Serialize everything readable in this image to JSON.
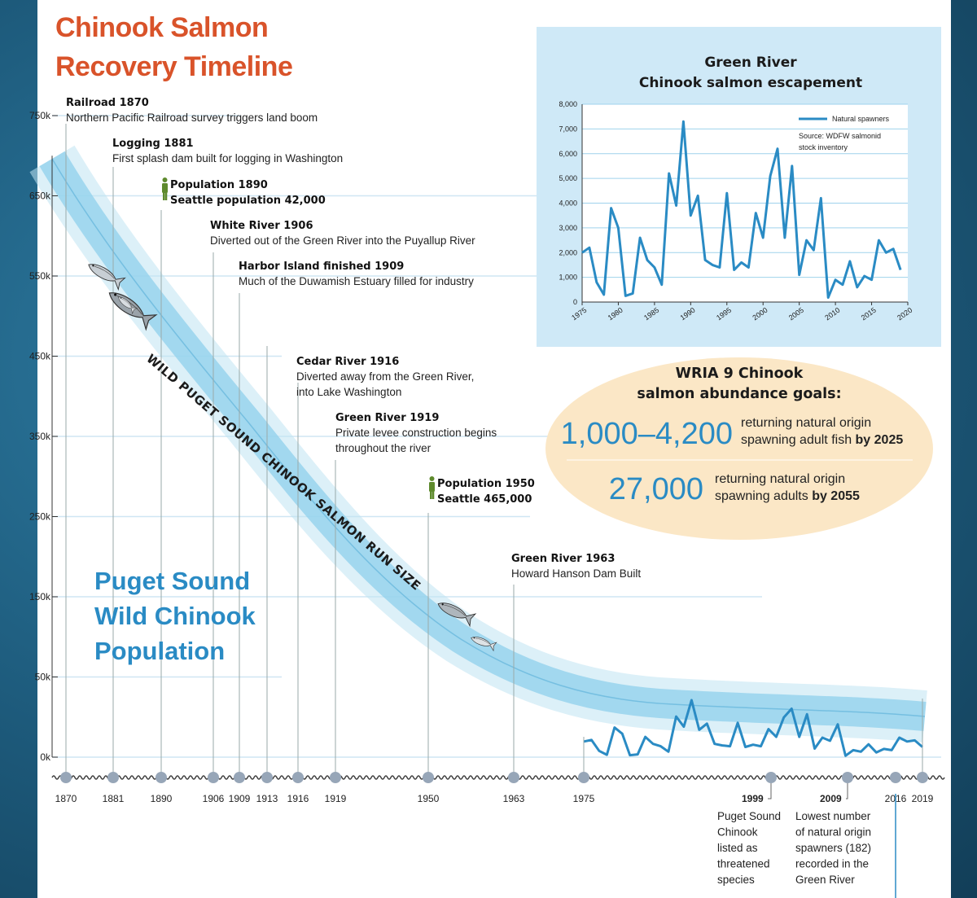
{
  "title_line1": "Chinook Salmon",
  "title_line2": "Recovery Timeline",
  "colors": {
    "title": "#d9532a",
    "accent_blue": "#2a8bc4",
    "band": "#7fc7e6",
    "inset_bg": "#cfe9f7",
    "goals_bg": "#fbe7c6",
    "population_icon": "#5e8a2d"
  },
  "main_chart": {
    "y_ticks": [
      "750k",
      "650k",
      "550k",
      "450k",
      "350k",
      "250k",
      "150k",
      "50k",
      "0k"
    ],
    "run_size_label": "WILD PUGET SOUND CHINOOK SALMON RUN SIZE",
    "population_label": [
      "Puget Sound",
      "Wild Chinook",
      "Population"
    ],
    "timeline_years": [
      "1870",
      "1881",
      "1890",
      "1906",
      "1909",
      "1913",
      "1916",
      "1919",
      "1950",
      "1963",
      "1975",
      "1999",
      "2009",
      "2016",
      "2019"
    ],
    "events": [
      {
        "title": "Railroad 1870",
        "desc": [
          "Northern Pacific Railroad survey triggers land boom"
        ],
        "icon": "none"
      },
      {
        "title": "Logging 1881",
        "desc": [
          "First splash dam built for logging in Washington"
        ],
        "icon": "none"
      },
      {
        "title": "Population 1890",
        "desc": [
          "Seattle population 42,000"
        ],
        "icon": "person-icon"
      },
      {
        "title": "White River 1906",
        "desc": [
          "Diverted out of the Green River into the Puyallup River"
        ],
        "icon": "none"
      },
      {
        "title": "Harbor Island finished 1909",
        "desc": [
          "Much of the Duwamish Estuary filled for industry"
        ],
        "icon": "none"
      },
      {
        "title": "Cedar River 1916",
        "desc": [
          "Diverted away from the Green River,",
          "into Lake Washington"
        ],
        "icon": "none"
      },
      {
        "title": "Green River 1919",
        "desc": [
          "Private levee construction begins",
          "throughout the river"
        ],
        "icon": "none"
      },
      {
        "title": "Population 1950",
        "desc": [
          "Seattle 465,000"
        ],
        "icon": "person-icon"
      },
      {
        "title": "Green River 1963",
        "desc": [
          "Howard Hanson Dam Built"
        ],
        "icon": "none"
      }
    ],
    "notes": [
      {
        "year": "1999",
        "lines": [
          "Puget Sound",
          "Chinook",
          "listed as",
          "threatened",
          "species"
        ]
      },
      {
        "year": "2009",
        "lines": [
          "Lowest number",
          "of natural origin",
          "spawners (182)",
          "recorded in the",
          "Green River"
        ]
      }
    ]
  },
  "chart_data": {
    "type": "line",
    "title": "Green River Chinook salmon escapement",
    "title_lines": [
      "Green River",
      "Chinook salmon escapement"
    ],
    "legend": "Natural spawners",
    "legend_position": "top-right",
    "source_lines": [
      "Source: WDFW salmonid",
      "stock inventory"
    ],
    "xlim": [
      1975,
      2020
    ],
    "ylim": [
      0,
      8000
    ],
    "x_ticks": [
      "1975",
      "1980",
      "1985",
      "1990",
      "1995",
      "2000",
      "2005",
      "2010",
      "2015",
      "2020"
    ],
    "y_ticks": [
      "0",
      "1,000",
      "2,000",
      "3,000",
      "4,000",
      "5,000",
      "6,000",
      "7,000",
      "8,000"
    ],
    "grid": true,
    "series": [
      {
        "name": "Natural spawners",
        "x": [
          1975,
          1976,
          1977,
          1978,
          1979,
          1980,
          1981,
          1982,
          1983,
          1984,
          1985,
          1986,
          1987,
          1988,
          1989,
          1990,
          1991,
          1992,
          1993,
          1994,
          1995,
          1996,
          1997,
          1998,
          1999,
          2000,
          2001,
          2002,
          2003,
          2004,
          2005,
          2006,
          2007,
          2008,
          2009,
          2010,
          2011,
          2012,
          2013,
          2014,
          2015,
          2016,
          2017,
          2018,
          2019
        ],
        "values": [
          2000,
          2200,
          800,
          300,
          3800,
          3000,
          250,
          350,
          2600,
          1700,
          1400,
          700,
          5200,
          3900,
          7300,
          3500,
          4300,
          1700,
          1500,
          1400,
          4400,
          1300,
          1600,
          1400,
          3600,
          2600,
          5100,
          6200,
          2600,
          5500,
          1100,
          2500,
          2100,
          4200,
          182,
          900,
          700,
          1650,
          600,
          1050,
          900,
          2500,
          2000,
          2150,
          1300
        ]
      }
    ]
  },
  "goals": {
    "title_lines": [
      "WRIA 9 Chinook",
      "salmon abundance goals:"
    ],
    "items": [
      {
        "number": "1,000–4,200",
        "line1": "returning natural origin",
        "line2_plain": "spawning adult fish ",
        "line2_bold": "by 2025"
      },
      {
        "number": "27,000",
        "line1": "returning natural origin",
        "line2_plain": "spawning adults ",
        "line2_bold": "by 2055"
      }
    ]
  }
}
